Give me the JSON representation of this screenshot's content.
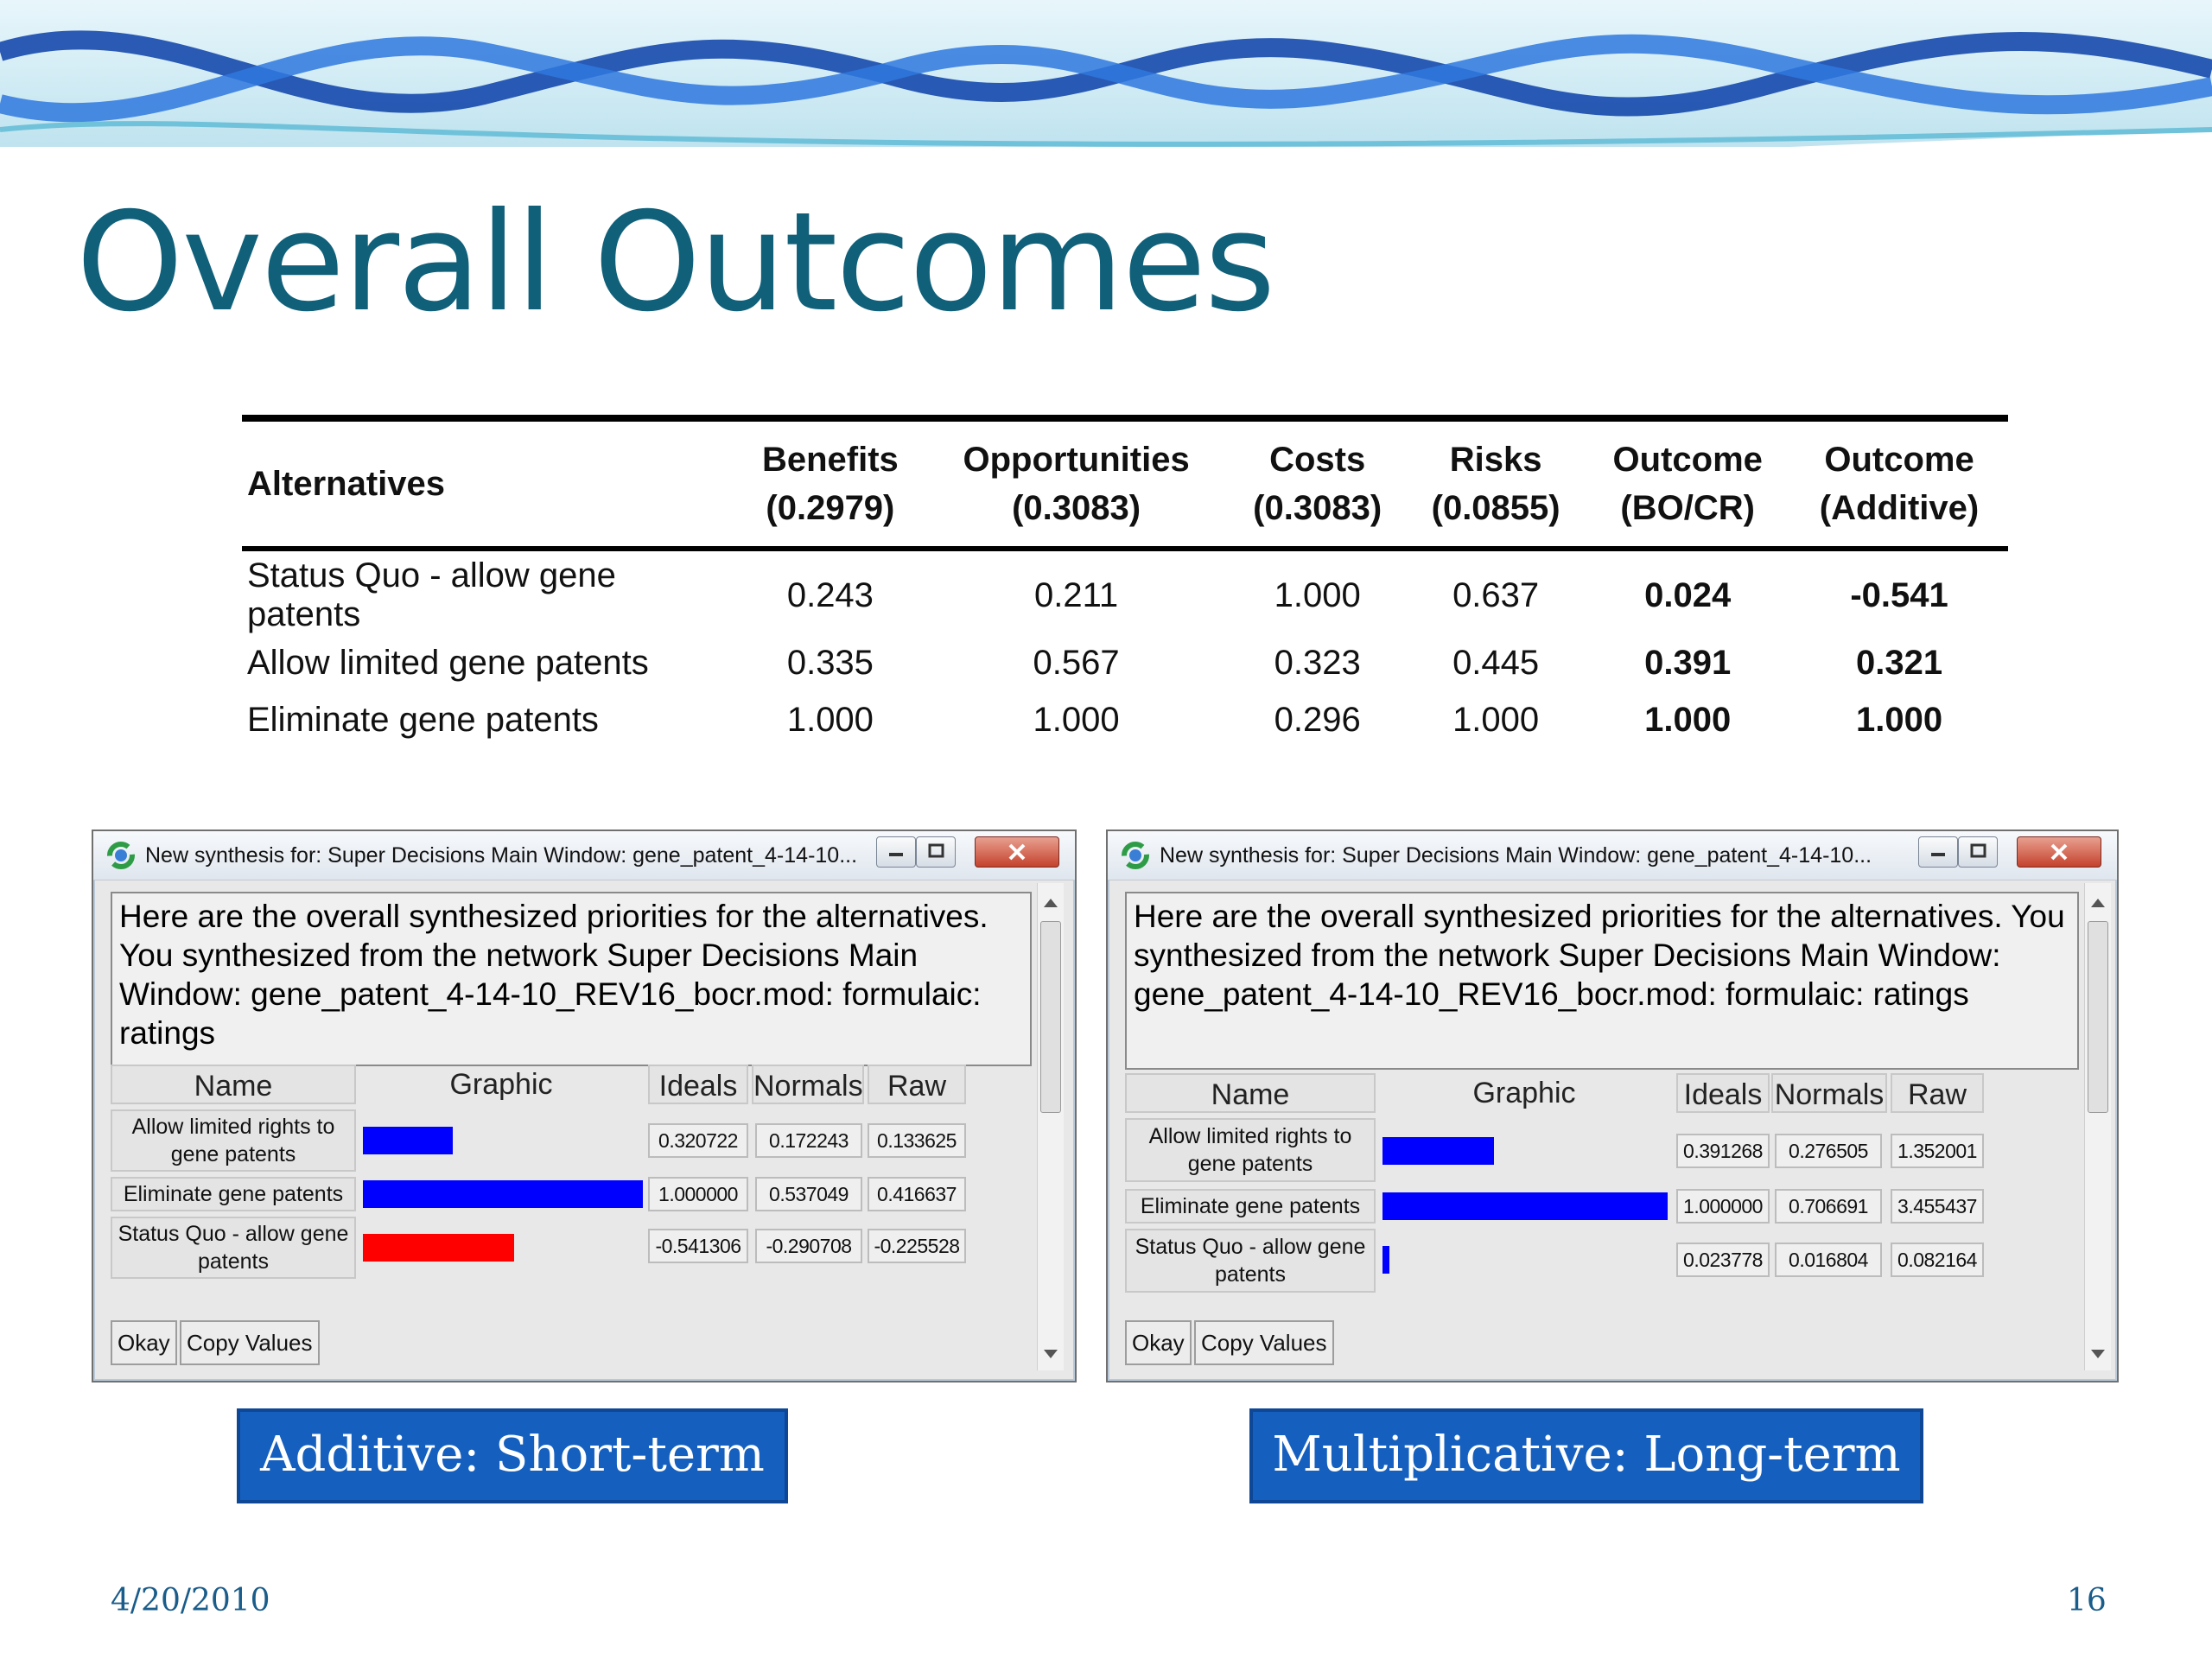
{
  "slide": {
    "title": "Overall Outcomes",
    "date": "4/20/2010",
    "page_number": "16"
  },
  "summary_table": {
    "headers": {
      "alternatives": "Alternatives",
      "benefits": [
        "Benefits",
        "(0.2979)"
      ],
      "opportunities": [
        "Opportunities",
        "(0.3083)"
      ],
      "costs": [
        "Costs",
        "(0.3083)"
      ],
      "risks": [
        "Risks",
        "(0.0855)"
      ],
      "outcome_bocr": [
        "Outcome",
        "(BO/CR)"
      ],
      "outcome_additive": [
        "Outcome",
        "(Additive)"
      ]
    },
    "rows": [
      {
        "name": "Status Quo - allow gene patents",
        "benefits": "0.243",
        "opportunities": "0.211",
        "costs": "1.000",
        "risks": "0.637",
        "bocr": "0.024",
        "additive": "-0.541"
      },
      {
        "name": "Allow limited gene patents",
        "benefits": "0.335",
        "opportunities": "0.567",
        "costs": "0.323",
        "risks": "0.445",
        "bocr": "0.391",
        "additive": "0.321"
      },
      {
        "name": "Eliminate gene patents",
        "benefits": "1.000",
        "opportunities": "1.000",
        "costs": "0.296",
        "risks": "1.000",
        "bocr": "1.000",
        "additive": "1.000"
      }
    ]
  },
  "dialogs": [
    {
      "window_title": "New synthesis for: Super Decisions Main Window: gene_patent_4-14-10...",
      "message": "Here are the overall synthesized priorities for the alternatives. You synthesized from the network Super Decisions Main Window: gene_patent_4-14-10_REV16_bocr.mod: formulaic: ratings",
      "columns": {
        "name": "Name",
        "graphic": "Graphic",
        "ideals": "Ideals",
        "normals": "Normals",
        "raw": "Raw"
      },
      "rows": [
        {
          "name": "Allow limited rights to gene patents",
          "ideals": "0.320722",
          "normals": "0.172243",
          "raw": "0.133625",
          "bar_fraction": 0.32,
          "bar_color": "#0000ff"
        },
        {
          "name": "Eliminate gene patents",
          "ideals": "1.000000",
          "normals": "0.537049",
          "raw": "0.416637",
          "bar_fraction": 1.0,
          "bar_color": "#0000ff"
        },
        {
          "name": "Status Quo - allow gene patents",
          "ideals": "-0.541306",
          "normals": "-0.290708",
          "raw": "-0.225528",
          "bar_fraction": 0.54,
          "bar_color": "#ff0000"
        }
      ],
      "buttons": {
        "okay": "Okay",
        "copy": "Copy Values"
      },
      "caption": "Additive: Short-term"
    },
    {
      "window_title": "New synthesis for: Super Decisions Main Window: gene_patent_4-14-10...",
      "message": "Here are the overall synthesized priorities for the alternatives. You synthesized from the network Super Decisions Main Window: gene_patent_4-14-10_REV16_bocr.mod: formulaic: ratings",
      "columns": {
        "name": "Name",
        "graphic": "Graphic",
        "ideals": "Ideals",
        "normals": "Normals",
        "raw": "Raw"
      },
      "rows": [
        {
          "name": "Allow limited rights to gene patents",
          "ideals": "0.391268",
          "normals": "0.276505",
          "raw": "1.352001",
          "bar_fraction": 0.39,
          "bar_color": "#0000ff"
        },
        {
          "name": "Eliminate gene patents",
          "ideals": "1.000000",
          "normals": "0.706691",
          "raw": "3.455437",
          "bar_fraction": 1.0,
          "bar_color": "#0000ff"
        },
        {
          "name": "Status Quo - allow gene patents",
          "ideals": "0.023778",
          "normals": "0.016804",
          "raw": "0.082164",
          "bar_fraction": 0.024,
          "bar_color": "#0000ff"
        }
      ],
      "buttons": {
        "okay": "Okay",
        "copy": "Copy Values"
      },
      "caption": "Multiplicative: Long-term"
    }
  ]
}
